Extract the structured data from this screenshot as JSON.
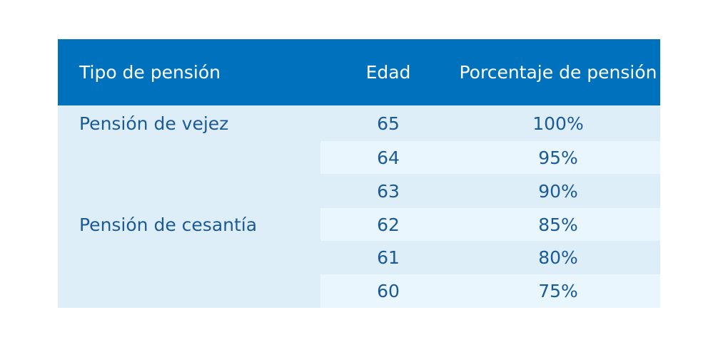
{
  "table": {
    "headers": {
      "tipo": "Tipo de pensión",
      "edad": "Edad",
      "porcentaje": "Porcentaje de pensión"
    },
    "groups": [
      {
        "tipo": "Pensión de vejez",
        "rows": [
          {
            "edad": "65",
            "porcentaje": "100%"
          }
        ]
      },
      {
        "tipo": "Pensión de cesantía",
        "rows": [
          {
            "edad": "64",
            "porcentaje": "95%"
          },
          {
            "edad": "63",
            "porcentaje": "90%"
          },
          {
            "edad": "62",
            "porcentaje": "85%"
          },
          {
            "edad": "61",
            "porcentaje": "80%"
          },
          {
            "edad": "60",
            "porcentaje": "75%"
          }
        ]
      }
    ],
    "colors": {
      "header_bg": "#0071bc",
      "header_text": "#ffffff",
      "body_text": "#1a5a96",
      "row_dark": "#deeef9",
      "row_light": "#eaf6fd"
    }
  }
}
